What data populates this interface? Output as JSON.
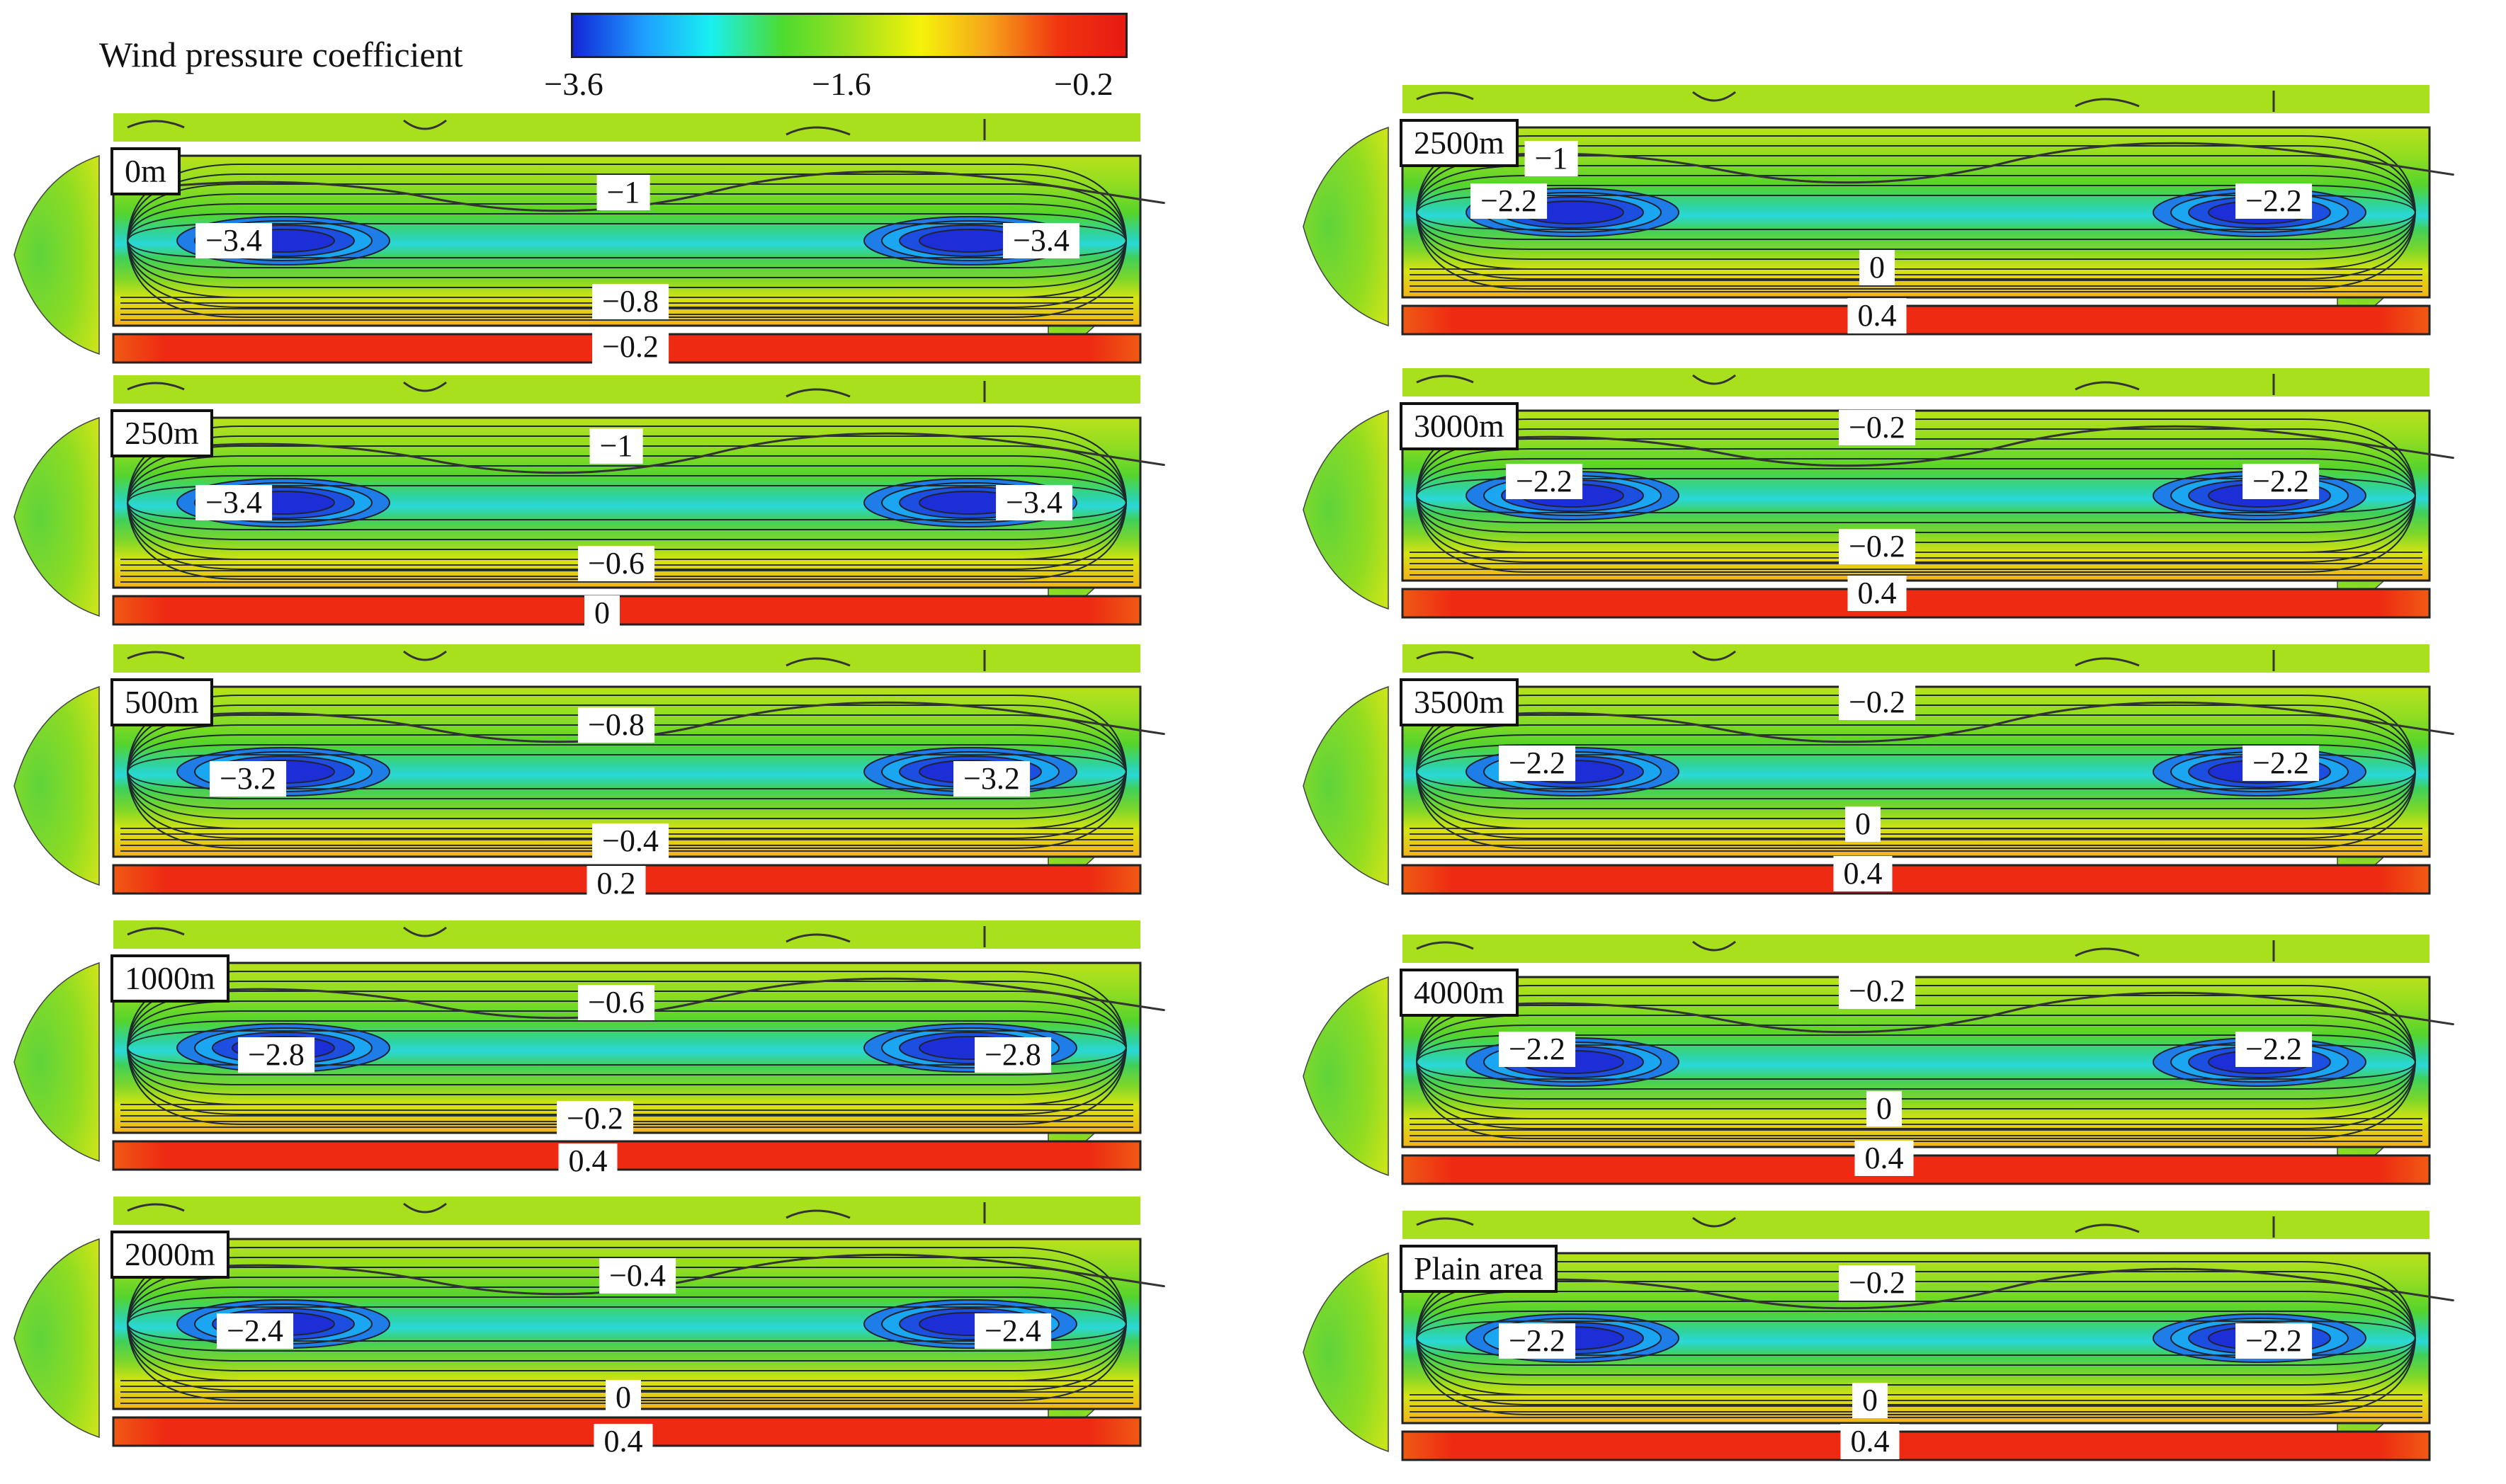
{
  "legend": {
    "title": "Wind pressure coefficient",
    "ticks": [
      "−3.6",
      "−1.6",
      "−0.2"
    ],
    "colors": [
      "#1226d8",
      "#1ea0ff",
      "#19f0f0",
      "#4ddb2e",
      "#9be01f",
      "#f5f20a",
      "#f7a51a",
      "#f03410",
      "#e81a12"
    ]
  },
  "panels": [
    {
      "name": "0m",
      "top_label": "−1",
      "min_label": "−3.4",
      "bottom_label": "−0.8",
      "edge_label": "−0.2"
    },
    {
      "name": "250m",
      "top_label": "−1",
      "min_label": "−3.4",
      "bottom_label": "−0.6",
      "edge_label": "0"
    },
    {
      "name": "500m",
      "top_label": "−0.8",
      "min_label": "−3.2",
      "bottom_label": "−0.4",
      "edge_label": "0.2"
    },
    {
      "name": "1000m",
      "top_label": "−0.6",
      "min_label": "−2.8",
      "bottom_label": "−0.2",
      "edge_label": "0.4"
    },
    {
      "name": "2000m",
      "top_label": "−0.4",
      "min_label": "−2.4",
      "bottom_label": "0",
      "edge_label": "0.4"
    },
    {
      "name": "2500m",
      "top_label": "−1",
      "min_label": "−2.2",
      "bottom_label": "0",
      "edge_label": "0.4"
    },
    {
      "name": "3000m",
      "top_label": "−0.2",
      "min_label": "−2.2",
      "bottom_label": "−0.2",
      "edge_label": "0.4"
    },
    {
      "name": "3500m",
      "top_label": "−0.2",
      "min_label": "−2.2",
      "bottom_label": "0",
      "edge_label": "0.4"
    },
    {
      "name": "4000m",
      "top_label": "−0.2",
      "min_label": "−2.2",
      "bottom_label": "0",
      "edge_label": "0.4"
    },
    {
      "name": "Plain area",
      "top_label": "−0.2",
      "min_label": "−2.2",
      "bottom_label": "0",
      "edge_label": "0.4"
    }
  ]
}
